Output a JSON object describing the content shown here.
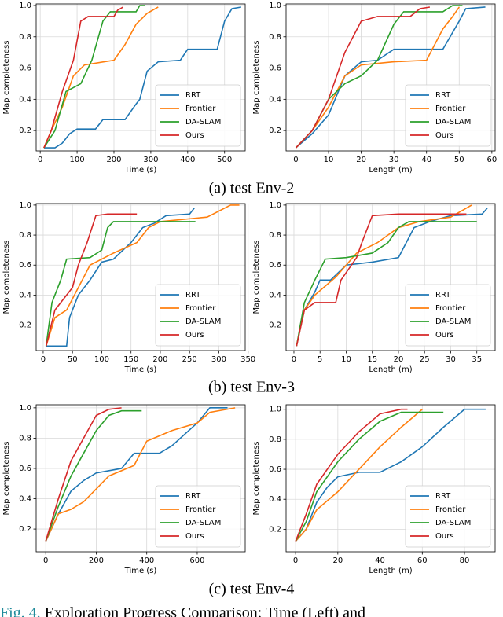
{
  "chart_data": [
    {
      "type": "line",
      "xlabel": "Time (s)",
      "ylabel": "Map completeness",
      "xlim": [
        -11,
        556
      ],
      "ylim": [
        0.07,
        1.01
      ],
      "xticks": [
        0,
        100,
        200,
        300,
        400,
        500
      ],
      "yticks": [
        0.2,
        0.4,
        0.6,
        0.8,
        {
          "value": 1,
          "label": "1.0"
        }
      ],
      "grid": true,
      "legend": "lower right",
      "series": [
        {
          "name": "RRT",
          "color": "#1f77b4",
          "x": [
            10,
            40,
            60,
            80,
            100,
            150,
            170,
            230,
            260,
            270,
            290,
            320,
            380,
            400,
            480,
            500,
            520,
            545
          ],
          "values": [
            0.09,
            0.09,
            0.12,
            0.18,
            0.21,
            0.21,
            0.27,
            0.27,
            0.37,
            0.4,
            0.58,
            0.64,
            0.65,
            0.72,
            0.72,
            0.9,
            0.98,
            0.99
          ]
        },
        {
          "name": "Frontier",
          "color": "#ff7f0e",
          "x": [
            10,
            30,
            60,
            90,
            120,
            200,
            230,
            260,
            290,
            320
          ],
          "values": [
            0.09,
            0.2,
            0.35,
            0.55,
            0.62,
            0.65,
            0.75,
            0.88,
            0.95,
            0.99
          ]
        },
        {
          "name": "DA-SLAM",
          "color": "#2ca02c",
          "x": [
            10,
            40,
            70,
            110,
            140,
            170,
            190,
            260,
            270,
            285
          ],
          "values": [
            0.09,
            0.2,
            0.45,
            0.5,
            0.65,
            0.9,
            0.96,
            0.96,
            1.0,
            1.0
          ]
        },
        {
          "name": "Ours",
          "color": "#d62728",
          "x": [
            10,
            30,
            60,
            90,
            110,
            130,
            200,
            210,
            225
          ],
          "values": [
            0.09,
            0.2,
            0.45,
            0.65,
            0.9,
            0.93,
            0.93,
            0.97,
            0.99
          ]
        }
      ]
    },
    {
      "type": "line",
      "xlabel": "Length (m)",
      "ylabel": "Map completeness",
      "xlim": [
        -3,
        61
      ],
      "ylim": [
        0.07,
        1.01
      ],
      "xticks": [
        0,
        10,
        20,
        30,
        40,
        50,
        60
      ],
      "yticks": [
        0.2,
        0.4,
        0.6,
        0.8,
        {
          "value": 1,
          "label": "1.0"
        }
      ],
      "grid": true,
      "legend": "lower right",
      "series": [
        {
          "name": "RRT",
          "color": "#1f77b4",
          "x": [
            0,
            5,
            10,
            15,
            20,
            25,
            30,
            45,
            50,
            52,
            58
          ],
          "values": [
            0.09,
            0.18,
            0.3,
            0.55,
            0.64,
            0.65,
            0.72,
            0.72,
            0.9,
            0.98,
            0.99
          ]
        },
        {
          "name": "Frontier",
          "color": "#ff7f0e",
          "x": [
            0,
            5,
            10,
            15,
            20,
            30,
            40,
            45,
            48,
            50
          ],
          "values": [
            0.09,
            0.2,
            0.35,
            0.55,
            0.62,
            0.64,
            0.65,
            0.85,
            0.93,
            0.99
          ]
        },
        {
          "name": "DA-SLAM",
          "color": "#2ca02c",
          "x": [
            0,
            5,
            10,
            15,
            20,
            25,
            30,
            33,
            45,
            48,
            51
          ],
          "values": [
            0.09,
            0.2,
            0.4,
            0.5,
            0.55,
            0.65,
            0.88,
            0.96,
            0.96,
            1.0,
            1.0
          ]
        },
        {
          "name": "Ours",
          "color": "#d62728",
          "x": [
            0,
            5,
            10,
            15,
            20,
            25,
            35,
            38,
            41
          ],
          "values": [
            0.09,
            0.2,
            0.4,
            0.7,
            0.9,
            0.93,
            0.93,
            0.98,
            0.99
          ]
        }
      ]
    },
    {
      "type": "line",
      "xlabel": "Time (s)",
      "ylabel": "Map completeness",
      "xlim": [
        -12,
        345
      ],
      "ylim": [
        0.03,
        1.01
      ],
      "xticks": [
        0,
        50,
        100,
        150,
        200,
        250,
        300,
        350
      ],
      "yticks": [
        0.2,
        0.4,
        0.6,
        0.8,
        {
          "value": 1,
          "label": "1.0"
        }
      ],
      "grid": true,
      "legend": "lower right",
      "series": [
        {
          "name": "RRT",
          "color": "#1f77b4",
          "x": [
            5,
            40,
            45,
            60,
            80,
            100,
            120,
            150,
            170,
            190,
            210,
            250,
            258
          ],
          "values": [
            0.06,
            0.06,
            0.25,
            0.4,
            0.5,
            0.62,
            0.64,
            0.75,
            0.85,
            0.88,
            0.93,
            0.94,
            0.98
          ]
        },
        {
          "name": "Frontier",
          "color": "#ff7f0e",
          "x": [
            5,
            20,
            40,
            60,
            80,
            120,
            160,
            180,
            200,
            280,
            320,
            335
          ],
          "values": [
            0.06,
            0.25,
            0.3,
            0.45,
            0.6,
            0.68,
            0.75,
            0.85,
            0.89,
            0.92,
            1.0,
            1.0
          ]
        },
        {
          "name": "DA-SLAM",
          "color": "#2ca02c",
          "x": [
            5,
            15,
            30,
            40,
            80,
            100,
            110,
            120,
            200,
            260
          ],
          "values": [
            0.06,
            0.35,
            0.5,
            0.64,
            0.65,
            0.7,
            0.85,
            0.89,
            0.89,
            0.89
          ]
        },
        {
          "name": "Ours",
          "color": "#d62728",
          "x": [
            5,
            20,
            50,
            60,
            75,
            90,
            110,
            160
          ],
          "values": [
            0.06,
            0.3,
            0.45,
            0.6,
            0.75,
            0.93,
            0.94,
            0.94
          ]
        }
      ]
    },
    {
      "type": "line",
      "xlabel": "Length (m)",
      "ylabel": "Map completeness",
      "xlim": [
        -1.5,
        38.5
      ],
      "ylim": [
        0.03,
        1.01
      ],
      "xticks": [
        0,
        5,
        10,
        15,
        20,
        25,
        30,
        35
      ],
      "yticks": [
        0.2,
        0.4,
        0.6,
        0.8,
        {
          "value": 1,
          "label": "1.0"
        }
      ],
      "grid": true,
      "legend": "lower right",
      "series": [
        {
          "name": "RRT",
          "color": "#1f77b4",
          "x": [
            0.5,
            2,
            4,
            5,
            7,
            10,
            15,
            20,
            23,
            26,
            30,
            36,
            37
          ],
          "values": [
            0.06,
            0.3,
            0.42,
            0.5,
            0.5,
            0.6,
            0.62,
            0.65,
            0.85,
            0.89,
            0.93,
            0.94,
            0.98
          ]
        },
        {
          "name": "Frontier",
          "color": "#ff7f0e",
          "x": [
            0.5,
            2,
            4,
            8,
            12,
            16,
            20,
            24,
            30,
            34
          ],
          "values": [
            0.06,
            0.3,
            0.4,
            0.52,
            0.68,
            0.75,
            0.85,
            0.89,
            0.92,
            1.0
          ]
        },
        {
          "name": "DA-SLAM",
          "color": "#2ca02c",
          "x": [
            0.5,
            2,
            4,
            6,
            10,
            15,
            18,
            20,
            22,
            35
          ],
          "values": [
            0.06,
            0.35,
            0.5,
            0.64,
            0.65,
            0.68,
            0.75,
            0.85,
            0.89,
            0.89
          ]
        },
        {
          "name": "Ours",
          "color": "#d62728",
          "x": [
            0.5,
            2,
            4,
            8,
            9,
            12,
            13,
            15,
            20,
            33
          ],
          "values": [
            0.06,
            0.3,
            0.35,
            0.35,
            0.5,
            0.65,
            0.75,
            0.93,
            0.94,
            0.94
          ]
        }
      ]
    },
    {
      "type": "line",
      "xlabel": "Time (s)",
      "ylabel": "Map completeness",
      "xlim": [
        -38,
        790
      ],
      "ylim": [
        0.05,
        1.02
      ],
      "xticks": [
        0,
        200,
        400,
        600
      ],
      "yticks": [
        0.2,
        0.4,
        0.6,
        0.8,
        {
          "value": 1,
          "label": "1.0"
        }
      ],
      "grid": true,
      "legend": "lower right",
      "series": [
        {
          "name": "RRT",
          "color": "#1f77b4",
          "x": [
            0,
            50,
            100,
            150,
            200,
            300,
            350,
            450,
            500,
            600,
            650,
            720
          ],
          "values": [
            0.12,
            0.3,
            0.45,
            0.52,
            0.57,
            0.6,
            0.7,
            0.7,
            0.75,
            0.9,
            1.0,
            1.0
          ]
        },
        {
          "name": "Frontier",
          "color": "#ff7f0e",
          "x": [
            0,
            50,
            100,
            150,
            250,
            350,
            400,
            500,
            600,
            650,
            750
          ],
          "values": [
            0.12,
            0.3,
            0.33,
            0.38,
            0.55,
            0.62,
            0.78,
            0.85,
            0.9,
            0.97,
            1.0
          ]
        },
        {
          "name": "DA-SLAM",
          "color": "#2ca02c",
          "x": [
            0,
            50,
            100,
            150,
            200,
            250,
            300,
            380
          ],
          "values": [
            0.12,
            0.35,
            0.55,
            0.7,
            0.85,
            0.95,
            0.98,
            0.98
          ]
        },
        {
          "name": "Ours",
          "color": "#d62728",
          "x": [
            0,
            50,
            100,
            150,
            200,
            250,
            300
          ],
          "values": [
            0.12,
            0.4,
            0.65,
            0.8,
            0.95,
            0.99,
            1.0
          ]
        }
      ]
    },
    {
      "type": "line",
      "xlabel": "Length (m)",
      "ylabel": "Map completeness",
      "xlim": [
        -4.5,
        94.5
      ],
      "ylim": [
        0.05,
        1.03
      ],
      "xticks": [
        0,
        20,
        40,
        60,
        80
      ],
      "yticks": [
        0.2,
        0.4,
        0.6,
        0.8,
        {
          "value": 1,
          "label": "1.0"
        }
      ],
      "grid": true,
      "legend": "lower right",
      "series": [
        {
          "name": "RRT",
          "color": "#1f77b4",
          "x": [
            0,
            5,
            10,
            15,
            20,
            30,
            40,
            50,
            60,
            70,
            80,
            90
          ],
          "values": [
            0.12,
            0.2,
            0.38,
            0.48,
            0.55,
            0.58,
            0.58,
            0.65,
            0.75,
            0.88,
            1.0,
            1.0
          ]
        },
        {
          "name": "Frontier",
          "color": "#ff7f0e",
          "x": [
            0,
            5,
            10,
            20,
            30,
            40,
            50,
            60
          ],
          "values": [
            0.12,
            0.2,
            0.33,
            0.45,
            0.6,
            0.75,
            0.88,
            1.0
          ]
        },
        {
          "name": "DA-SLAM",
          "color": "#2ca02c",
          "x": [
            0,
            5,
            10,
            20,
            30,
            40,
            50,
            70
          ],
          "values": [
            0.12,
            0.25,
            0.45,
            0.65,
            0.8,
            0.92,
            0.98,
            0.98
          ]
        },
        {
          "name": "Ours",
          "color": "#d62728",
          "x": [
            0,
            5,
            10,
            20,
            30,
            40,
            50,
            53
          ],
          "values": [
            0.12,
            0.3,
            0.5,
            0.7,
            0.85,
            0.97,
            1.0,
            1.0
          ]
        }
      ]
    }
  ],
  "captions": [
    "(a) test Env-2",
    "(b) test Env-3",
    "(c) test Env-4"
  ],
  "figure_caption": {
    "label": "Fig. 4.",
    "text": "Exploration Progress Comparison: Time (Left) and"
  }
}
